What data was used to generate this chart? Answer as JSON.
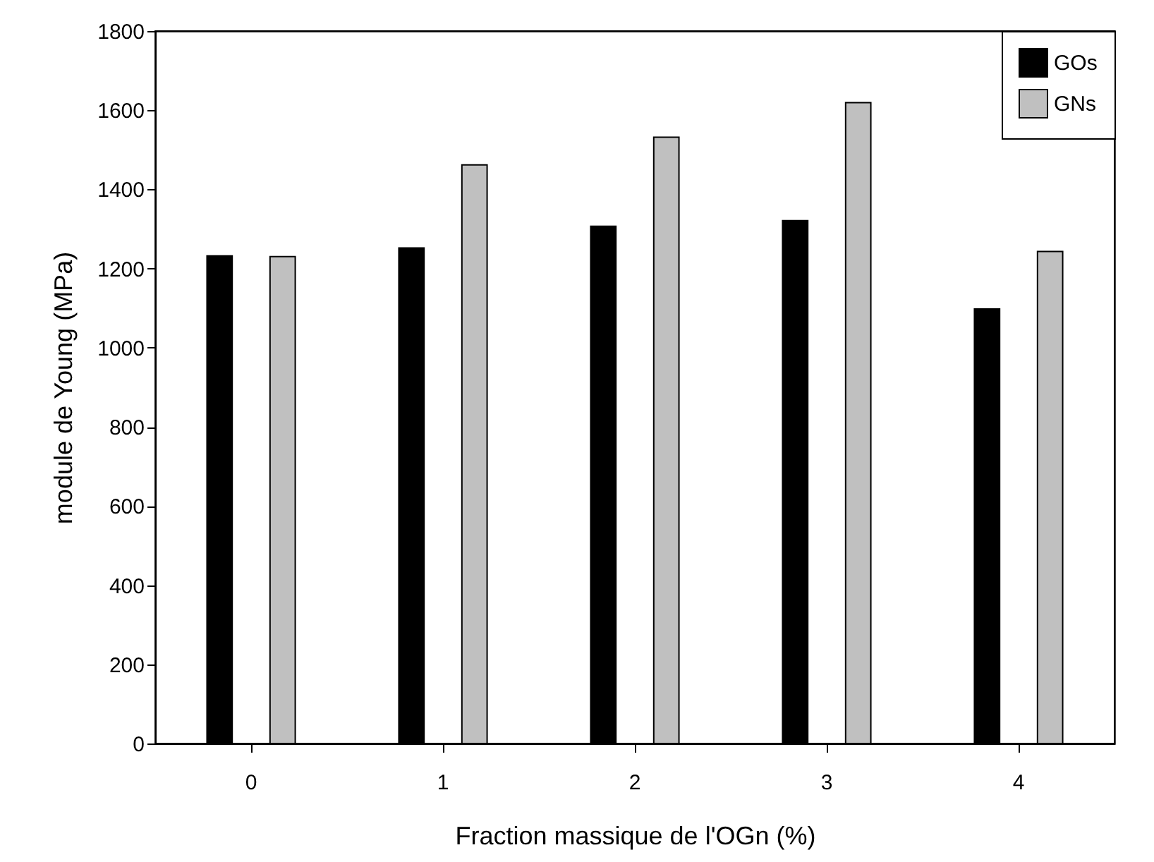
{
  "chart_data": {
    "type": "bar",
    "xlabel": "Fraction massique de l'OGn (%)",
    "ylabel": "module de Young (MPa)",
    "categories": [
      "0",
      "1",
      "2",
      "3",
      "4"
    ],
    "series": [
      {
        "name": "GOs",
        "color": "#000000",
        "values": [
          1232,
          1252,
          1307,
          1321,
          1098
        ]
      },
      {
        "name": "GNs",
        "color": "#c0c0c0",
        "values": [
          1230,
          1462,
          1532,
          1619,
          1243
        ]
      }
    ],
    "ylim": [
      0,
      1800
    ],
    "yticks": [
      0,
      200,
      400,
      600,
      800,
      1000,
      1200,
      1400,
      1600,
      1800
    ],
    "legend": "top right",
    "grid": false
  }
}
